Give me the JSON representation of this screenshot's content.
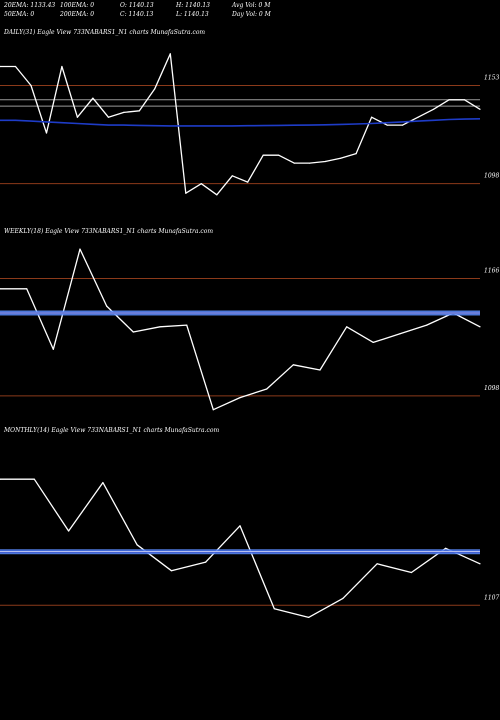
{
  "header": {
    "row1": [
      "20EMA: 1133.43",
      "100EMA: 0",
      "O: 1140.13",
      "H: 1140.13",
      "Avg Vol: 0  M"
    ],
    "row2": [
      "50EMA: 0",
      "200EMA: 0",
      "C: 1140.13",
      "L: 1140.13",
      "Day Vol: 0  M"
    ]
  },
  "colors": {
    "background": "#000000",
    "price_line": "#ffffff",
    "ema_line": "#1e3cc8",
    "ema_band": "#5a8cff",
    "level_line": "#8b3a1a",
    "gray_line": "#9a9a9a"
  },
  "chart_data": [
    {
      "type": "line",
      "title": "DAILY(31) Eagle   View  733NABARS1_N1 charts MunafaSutra.com",
      "y_tick_labels": [
        "1153",
        "1098"
      ],
      "ylim": [
        1070,
        1190
      ],
      "level_lines": [
        1160,
        1098
      ],
      "gray_lines": [
        1151,
        1147
      ],
      "series": [
        {
          "values": [
            1172,
            1172,
            1160,
            1130,
            1172,
            1140,
            1152,
            1140,
            1143,
            1144,
            1158,
            1180,
            1092,
            1098,
            1091,
            1103,
            1099,
            1116,
            1116,
            1111,
            1111,
            1112,
            1114,
            1117,
            1140,
            1135,
            1135,
            1140,
            1145,
            1151,
            1151,
            1145
          ]
        },
        {
          "values": [
            1138,
            1138,
            1137.5,
            1137,
            1136.5,
            1136,
            1135.5,
            1135,
            1135,
            1134.8,
            1134.6,
            1134.5,
            1134.5,
            1134.5,
            1134.5,
            1134.5,
            1134.6,
            1134.7,
            1134.8,
            1134.9,
            1135,
            1135.2,
            1135.4,
            1135.7,
            1136,
            1136.5,
            1137,
            1137.5,
            1138,
            1138.5,
            1138.8,
            1139
          ]
        }
      ]
    },
    {
      "type": "line",
      "title": "WEEKLY(18) Eagle   View  733NABARS1_N1 charts MunafaSutra.com",
      "y_tick_labels": [
        "1166",
        "1098"
      ],
      "ylim": [
        1080,
        1190
      ],
      "level_lines": [
        1166,
        1098
      ],
      "series": [
        {
          "values": [
            1160,
            1160,
            1125,
            1183,
            1150,
            1135,
            1138,
            1139,
            1090,
            1097,
            1102,
            1116,
            1113,
            1138,
            1129,
            1134,
            1139,
            1146,
            1138
          ]
        },
        {
          "values": [
            1146,
            1146,
            1146,
            1146,
            1146,
            1146,
            1146,
            1146,
            1146,
            1146,
            1146,
            1146,
            1146,
            1146,
            1146,
            1146,
            1146,
            1146,
            1146
          ]
        }
      ]
    },
    {
      "type": "line",
      "title": "MONTHLY(14) Eagle   View  733NABARS1_N1 charts MunafaSutra.com",
      "y_tick_labels": [
        "1107"
      ],
      "ylim": [
        1095,
        1205
      ],
      "level_lines": [
        1107
      ],
      "series": [
        {
          "values": [
            1180,
            1180,
            1150,
            1178,
            1142,
            1127,
            1132,
            1153,
            1105,
            1100,
            1111,
            1131,
            1126,
            1140,
            1131
          ]
        },
        {
          "values": [
            1138,
            1138,
            1138,
            1138,
            1138,
            1138,
            1138,
            1138,
            1138,
            1138,
            1138,
            1138,
            1138,
            1138,
            1138
          ]
        }
      ]
    }
  ]
}
